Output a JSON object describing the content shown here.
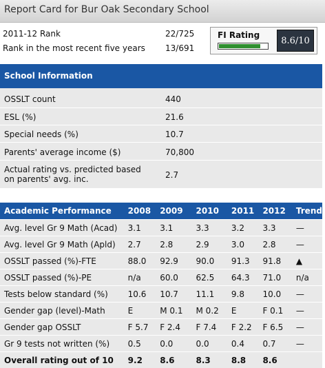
{
  "header": {
    "title": "Report Card for Bur Oak Secondary School"
  },
  "ranks": [
    {
      "label": "2011-12 Rank",
      "value": "22/725"
    },
    {
      "label": "Rank in the most recent five years",
      "value": "13/691"
    }
  ],
  "fi_rating": {
    "label": "FI Rating",
    "score": "8.6/10",
    "level": 0.86,
    "bar_color": "#2f8f2f"
  },
  "school_info": {
    "heading": "School Information",
    "rows": [
      {
        "label": "OSSLT count",
        "value": "440"
      },
      {
        "label": "ESL (%)",
        "value": "21.6"
      },
      {
        "label": "Special needs (%)",
        "value": "10.7"
      },
      {
        "label": "Parents' average income ($)",
        "value": "70,800"
      },
      {
        "label": "Actual rating vs. predicted based on parents' avg. inc.",
        "value": "2.7"
      }
    ]
  },
  "academic": {
    "headers": [
      "Academic Performance",
      "2008",
      "2009",
      "2010",
      "2011",
      "2012",
      "Trend"
    ],
    "rows": [
      [
        "Avg. level Gr 9 Math (Acad)",
        "3.1",
        "3.1",
        "3.3",
        "3.2",
        "3.3",
        "—"
      ],
      [
        "Avg. level Gr 9 Math (Apld)",
        "2.7",
        "2.8",
        "2.9",
        "3.0",
        "2.8",
        "—"
      ],
      [
        "OSSLT passed (%)-FTE",
        "88.0",
        "92.9",
        "90.0",
        "91.3",
        "91.8",
        "▲"
      ],
      [
        "OSSLT passed (%)-PE",
        "n/a",
        "60.0",
        "62.5",
        "64.3",
        "71.0",
        "n/a"
      ],
      [
        "Tests below standard (%)",
        "10.6",
        "10.7",
        "11.1",
        "9.8",
        "10.0",
        "—"
      ],
      [
        "Gender gap (level)-Math",
        "E",
        "M 0.1",
        "M 0.2",
        "E",
        "F 0.1",
        "—"
      ],
      [
        "Gender gap OSSLT",
        "F 5.7",
        "F 2.4",
        "F 7.4",
        "F 2.2",
        "F 6.5",
        "—"
      ],
      [
        "Gr 9 tests not written (%)",
        "0.5",
        "0.0",
        "0.0",
        "0.4",
        "0.7",
        "—"
      ],
      [
        "Overall rating out of 10",
        "9.2",
        "8.6",
        "8.3",
        "8.8",
        "8.6",
        ""
      ]
    ]
  },
  "colors": {
    "header_blue": "#1a57a4",
    "row_gray": "#e9e9e9"
  }
}
